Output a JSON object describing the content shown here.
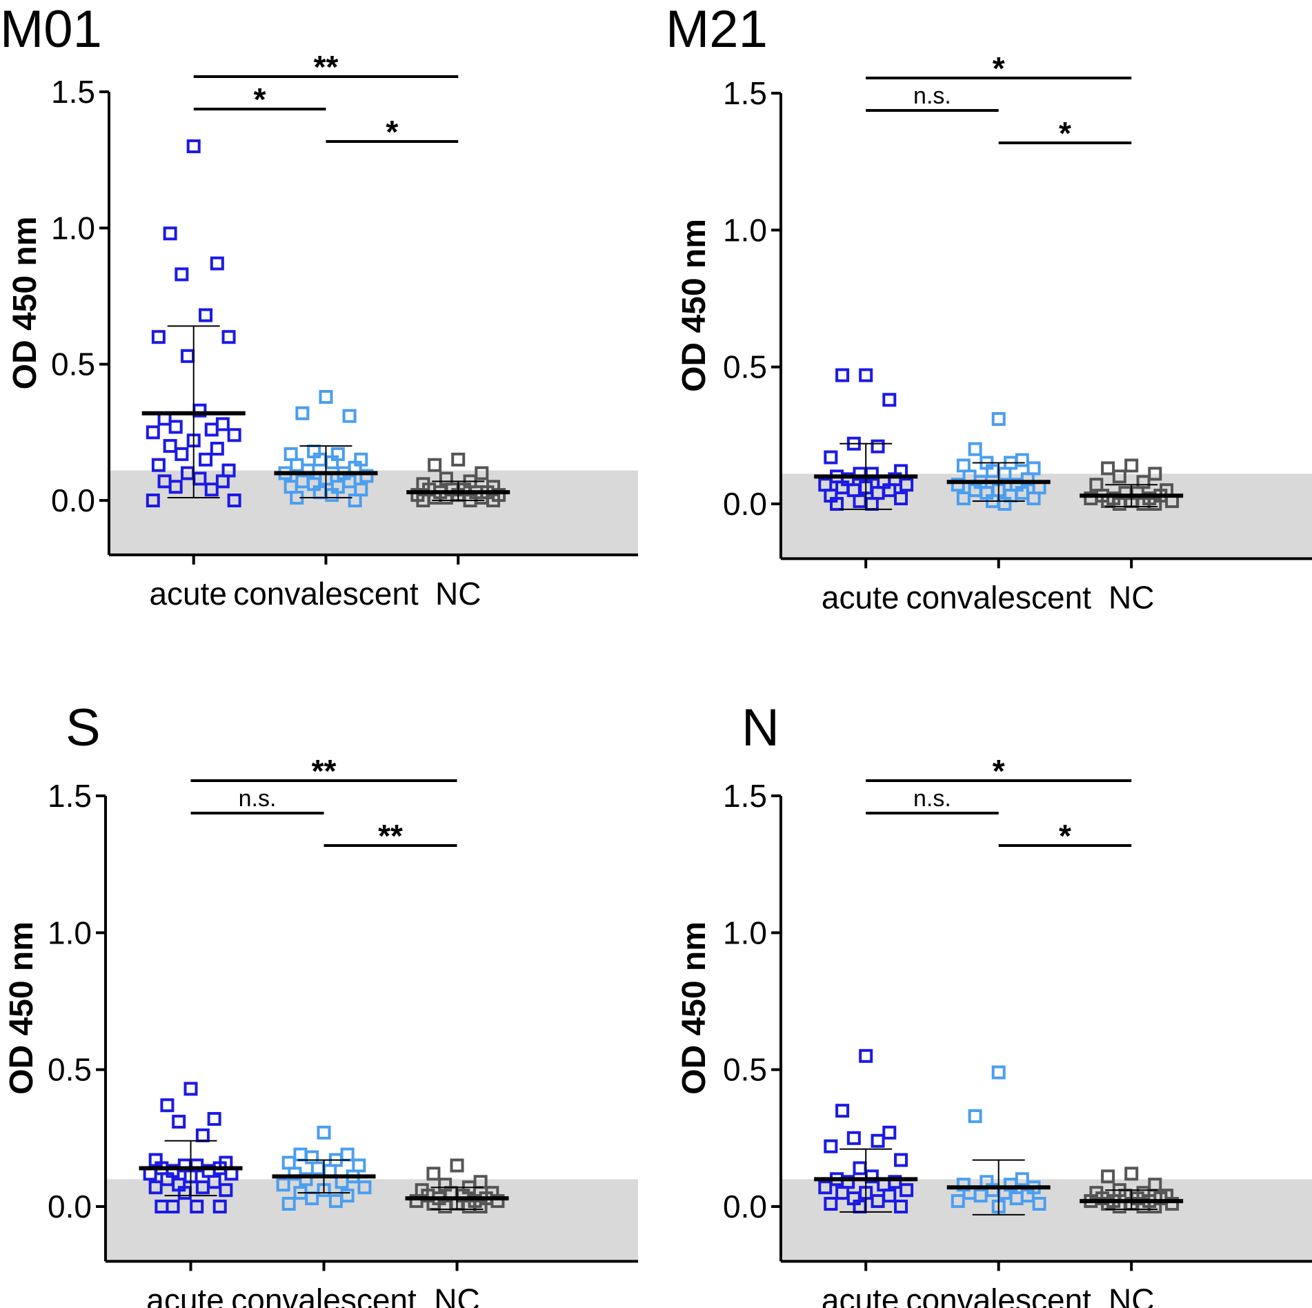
{
  "colors": {
    "acute": "#1a1ae6",
    "convalescent": "#4a9ef0",
    "NC": "#555555",
    "cutoff_band": "#d9d9d9",
    "axis": "#000000"
  },
  "chart_data": [
    {
      "type": "scatter",
      "panel": "M01",
      "title": "M01",
      "ylabel": "OD 450 nm",
      "xlabel": "",
      "ylim": [
        -0.2,
        1.5
      ],
      "yticks": [
        "0.0",
        "0.5",
        "1.0",
        "1.5"
      ],
      "ytick_values": [
        0.0,
        0.5,
        1.0,
        1.5
      ],
      "cutoff": 0.11,
      "categories": [
        "acute",
        "convalescent",
        "NC"
      ],
      "series": [
        {
          "name": "acute",
          "values": [
            1.3,
            0.98,
            0.87,
            0.83,
            0.68,
            0.6,
            0.6,
            0.53,
            0.33,
            0.3,
            0.28,
            0.27,
            0.26,
            0.25,
            0.24,
            0.22,
            0.2,
            0.19,
            0.17,
            0.15,
            0.13,
            0.11,
            0.1,
            0.08,
            0.07,
            0.07,
            0.05,
            0.04,
            0.0,
            0.0
          ],
          "mean": 0.32,
          "sd_low": 0.01,
          "sd_high": 0.64
        },
        {
          "name": "convalescent",
          "values": [
            0.38,
            0.32,
            0.31,
            0.18,
            0.17,
            0.17,
            0.15,
            0.15,
            0.14,
            0.13,
            0.12,
            0.11,
            0.1,
            0.1,
            0.09,
            0.08,
            0.07,
            0.07,
            0.06,
            0.05,
            0.05,
            0.04,
            0.03,
            0.02,
            0.01,
            0.0
          ],
          "mean": 0.1,
          "sd_low": 0.01,
          "sd_high": 0.2
        },
        {
          "name": "NC",
          "values": [
            0.15,
            0.13,
            0.1,
            0.08,
            0.07,
            0.06,
            0.05,
            0.04,
            0.04,
            0.04,
            0.03,
            0.03,
            0.03,
            0.02,
            0.02,
            0.02,
            0.01,
            0.01,
            0.01,
            0.0,
            0.0,
            0.0
          ],
          "mean": 0.03,
          "sd_low": 0.0,
          "sd_high": 0.07
        }
      ],
      "significance": [
        {
          "from": "acute",
          "to": "NC",
          "label": "**"
        },
        {
          "from": "acute",
          "to": "convalescent",
          "label": "*"
        },
        {
          "from": "convalescent",
          "to": "NC",
          "label": "*"
        }
      ]
    },
    {
      "type": "scatter",
      "panel": "M21",
      "title": "M21",
      "ylabel": "OD 450 nm",
      "xlabel": "",
      "ylim": [
        -0.2,
        1.5
      ],
      "yticks": [
        "0.0",
        "0.5",
        "1.0",
        "1.5"
      ],
      "ytick_values": [
        0.0,
        0.5,
        1.0,
        1.5
      ],
      "cutoff": 0.11,
      "categories": [
        "acute",
        "convalescent",
        "NC"
      ],
      "series": [
        {
          "name": "acute",
          "values": [
            0.47,
            0.47,
            0.38,
            0.22,
            0.21,
            0.17,
            0.12,
            0.11,
            0.11,
            0.1,
            0.09,
            0.09,
            0.08,
            0.07,
            0.07,
            0.06,
            0.06,
            0.05,
            0.05,
            0.04,
            0.03,
            0.02,
            0.01,
            0.0,
            0.0
          ],
          "mean": 0.1,
          "sd_low": -0.02,
          "sd_high": 0.22
        },
        {
          "name": "convalescent",
          "values": [
            0.31,
            0.2,
            0.16,
            0.15,
            0.15,
            0.14,
            0.13,
            0.12,
            0.11,
            0.1,
            0.09,
            0.08,
            0.07,
            0.07,
            0.06,
            0.05,
            0.05,
            0.04,
            0.04,
            0.03,
            0.02,
            0.02,
            0.01,
            0.0
          ],
          "mean": 0.08,
          "sd_low": 0.01,
          "sd_high": 0.15
        },
        {
          "name": "NC",
          "values": [
            0.14,
            0.13,
            0.11,
            0.1,
            0.08,
            0.07,
            0.05,
            0.04,
            0.04,
            0.03,
            0.03,
            0.02,
            0.02,
            0.02,
            0.01,
            0.01,
            0.01,
            0.0,
            0.0,
            0.0
          ],
          "mean": 0.03,
          "sd_low": -0.01,
          "sd_high": 0.07
        }
      ],
      "significance": [
        {
          "from": "acute",
          "to": "NC",
          "label": "*"
        },
        {
          "from": "acute",
          "to": "convalescent",
          "label": "n.s."
        },
        {
          "from": "convalescent",
          "to": "NC",
          "label": "*"
        }
      ]
    },
    {
      "type": "scatter",
      "panel": "S",
      "title": "S",
      "ylabel": "OD 450 nm",
      "xlabel": "",
      "ylim": [
        -0.2,
        1.5
      ],
      "yticks": [
        "0.0",
        "0.5",
        "1.0",
        "1.5"
      ],
      "ytick_values": [
        0.0,
        0.5,
        1.0,
        1.5
      ],
      "cutoff": 0.1,
      "categories": [
        "acute",
        "convalescent",
        "NC"
      ],
      "series": [
        {
          "name": "acute",
          "values": [
            0.43,
            0.37,
            0.32,
            0.31,
            0.26,
            0.17,
            0.16,
            0.15,
            0.15,
            0.14,
            0.14,
            0.13,
            0.13,
            0.12,
            0.12,
            0.11,
            0.1,
            0.09,
            0.08,
            0.07,
            0.07,
            0.06,
            0.05,
            0.0,
            0.0,
            0.0,
            0.0
          ],
          "mean": 0.14,
          "sd_low": 0.04,
          "sd_high": 0.24
        },
        {
          "name": "convalescent",
          "values": [
            0.27,
            0.19,
            0.19,
            0.18,
            0.17,
            0.16,
            0.15,
            0.14,
            0.13,
            0.12,
            0.11,
            0.1,
            0.09,
            0.08,
            0.07,
            0.06,
            0.05,
            0.04,
            0.03,
            0.02,
            0.01
          ],
          "mean": 0.11,
          "sd_low": 0.05,
          "sd_high": 0.17
        },
        {
          "name": "NC",
          "values": [
            0.15,
            0.12,
            0.09,
            0.08,
            0.07,
            0.06,
            0.05,
            0.05,
            0.04,
            0.04,
            0.03,
            0.03,
            0.02,
            0.02,
            0.02,
            0.01,
            0.01,
            0.0,
            0.0,
            0.0
          ],
          "mean": 0.03,
          "sd_low": -0.01,
          "sd_high": 0.07
        }
      ],
      "significance": [
        {
          "from": "acute",
          "to": "NC",
          "label": "**"
        },
        {
          "from": "acute",
          "to": "convalescent",
          "label": "n.s."
        },
        {
          "from": "convalescent",
          "to": "NC",
          "label": "**"
        }
      ]
    },
    {
      "type": "scatter",
      "panel": "N",
      "title": "N",
      "ylabel": "OD 450 nm",
      "xlabel": "",
      "ylim": [
        -0.2,
        1.5
      ],
      "yticks": [
        "0.0",
        "0.5",
        "1.0",
        "1.5"
      ],
      "ytick_values": [
        0.0,
        0.5,
        1.0,
        1.5
      ],
      "cutoff": 0.1,
      "categories": [
        "acute",
        "convalescent",
        "NC"
      ],
      "series": [
        {
          "name": "acute",
          "values": [
            0.55,
            0.35,
            0.27,
            0.25,
            0.24,
            0.22,
            0.17,
            0.14,
            0.11,
            0.1,
            0.09,
            0.09,
            0.08,
            0.07,
            0.06,
            0.05,
            0.05,
            0.04,
            0.03,
            0.02,
            0.01,
            0.0,
            0.0
          ],
          "mean": 0.1,
          "sd_low": -0.02,
          "sd_high": 0.21
        },
        {
          "name": "convalescent",
          "values": [
            0.49,
            0.33,
            0.1,
            0.09,
            0.08,
            0.08,
            0.07,
            0.06,
            0.05,
            0.05,
            0.04,
            0.04,
            0.03,
            0.02,
            0.01,
            0.0
          ],
          "mean": 0.07,
          "sd_low": -0.03,
          "sd_high": 0.17
        },
        {
          "name": "NC",
          "values": [
            0.12,
            0.11,
            0.08,
            0.06,
            0.05,
            0.05,
            0.04,
            0.04,
            0.03,
            0.03,
            0.03,
            0.02,
            0.02,
            0.02,
            0.01,
            0.01,
            0.01,
            0.0,
            0.0,
            0.0
          ],
          "mean": 0.02,
          "sd_low": -0.01,
          "sd_high": 0.06
        }
      ],
      "significance": [
        {
          "from": "acute",
          "to": "NC",
          "label": "*"
        },
        {
          "from": "acute",
          "to": "convalescent",
          "label": "n.s."
        },
        {
          "from": "convalescent",
          "to": "NC",
          "label": "*"
        }
      ]
    }
  ]
}
